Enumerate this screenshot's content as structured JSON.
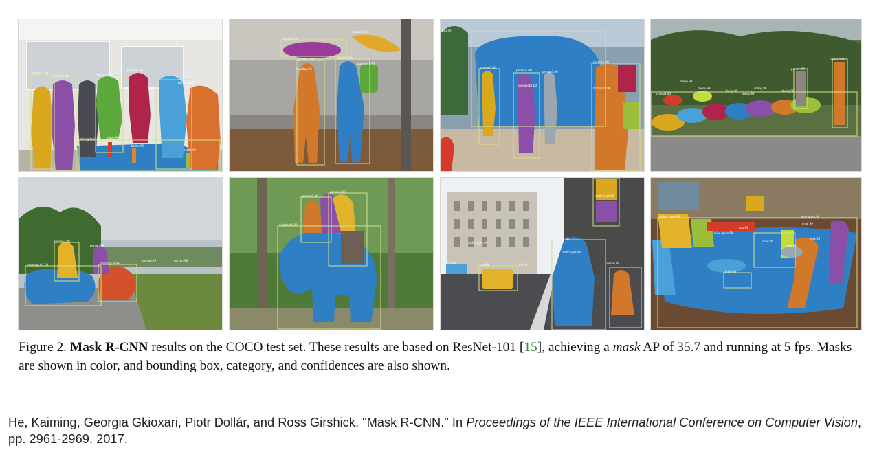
{
  "figure": {
    "panels": [
      {
        "id": "p1",
        "labels": [
          "person1.00",
          "person1.00",
          "person1.00",
          "person1.00",
          "person1.00",
          "dining table.96",
          "bottle.99",
          "bottle.99",
          "bottle.99"
        ]
      },
      {
        "id": "p2",
        "labels": [
          "umbrella.98",
          "umbrella.98",
          "person1.00",
          "person1.00",
          "handbag.96",
          "backpack.93"
        ]
      },
      {
        "id": "p3",
        "labels": [
          "bus.99",
          "person1.00",
          "person1.00",
          "person1.00",
          "backpack1.00",
          "backpack.96",
          "person1.00"
        ]
      },
      {
        "id": "p4",
        "labels": [
          "person.99",
          "sheep.99",
          "sheep.99",
          "sheep.99",
          "sheep.96",
          "sheep.86",
          "person1.00",
          "sheep1.00",
          "sheep.99"
        ]
      },
      {
        "id": "p5",
        "labels": [
          "person1.00",
          "person.99",
          "motorcycle1.00",
          "motorcycle.99",
          "person.99",
          "person.96"
        ]
      },
      {
        "id": "p6",
        "labels": [
          "person1.00",
          "person1.00",
          "elephant1.00"
        ]
      },
      {
        "id": "p7",
        "labels": [
          "traffic light.96",
          "traffic light.96",
          "car.99",
          "car.99",
          "person.99",
          "person1.00",
          "traffic light.94",
          "car.95"
        ]
      },
      {
        "id": "p8",
        "labels": [
          "dining table.96",
          "wine glass.99",
          "cup.99",
          "chair.99",
          "chair.96",
          "knife.83",
          "bowl.91",
          "fork.95",
          "wine glass.99"
        ]
      }
    ],
    "caption": {
      "prefix": "Figure 2.",
      "title": "Mask R-CNN",
      "text_a": "results on the COCO test set.  These results are based on ResNet-101 [",
      "ref": "15",
      "text_b": "], achieving a",
      "em": "mask",
      "text_c": "AP of 35.7 and running at 5 fps. Masks are shown in color, and bounding box, category, and confidences are also shown."
    }
  },
  "citation": {
    "before": "He, Kaiming, Georgia Gkioxari, Piotr Dollár, and Ross Girshick. \"Mask R-CNN.\" In",
    "venue": "Proceedings of the IEEE International Conference on Computer Vision",
    "after": ", pp. 2961-2969. 2017."
  }
}
